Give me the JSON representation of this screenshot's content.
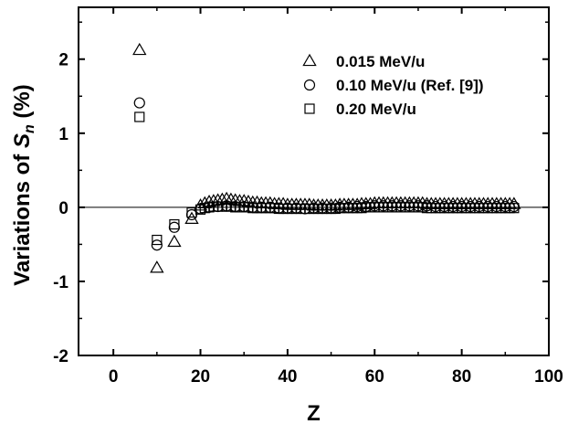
{
  "chart_data": {
    "type": "scatter",
    "title": "",
    "xlabel": "Z",
    "ylabel": {
      "prefix": "Variations of ",
      "symbol": "S",
      "subscript": "n",
      "suffix": " (%)"
    },
    "xlim": [
      -8,
      100
    ],
    "ylim": [
      -2,
      2.7
    ],
    "xticks": [
      0,
      20,
      40,
      60,
      80,
      100
    ],
    "yticks": [
      -2,
      -1,
      0,
      1,
      2
    ],
    "xtick_labels": [
      "0",
      "20",
      "40",
      "60",
      "80",
      "100"
    ],
    "ytick_labels": [
      "-2",
      "-1",
      "0",
      "1",
      "2"
    ],
    "grid": false,
    "zero_line": true,
    "legend_position": "top-right",
    "colors": {
      "marker": "#000000",
      "axis": "#000000",
      "zero_line": "#000000"
    },
    "series": [
      {
        "name": "0.015 MeV/u",
        "marker": "triangle",
        "x": [
          6,
          10,
          14,
          18,
          20,
          21,
          22,
          23,
          24,
          25,
          26,
          27,
          28,
          29,
          30,
          31,
          32,
          33,
          34,
          35,
          36,
          37,
          38,
          39,
          40,
          41,
          42,
          43,
          44,
          45,
          46,
          47,
          48,
          49,
          50,
          51,
          52,
          53,
          54,
          55,
          56,
          57,
          58,
          59,
          60,
          61,
          62,
          63,
          64,
          65,
          66,
          67,
          68,
          69,
          70,
          71,
          72,
          73,
          74,
          75,
          76,
          77,
          78,
          79,
          80,
          81,
          82,
          83,
          84,
          85,
          86,
          87,
          88,
          89,
          90,
          91,
          92
        ],
        "y": [
          2.12,
          -0.82,
          -0.47,
          -0.16,
          0.02,
          0.05,
          0.07,
          0.08,
          0.09,
          0.1,
          0.11,
          0.1,
          0.09,
          0.08,
          0.08,
          0.07,
          0.06,
          0.06,
          0.05,
          0.05,
          0.05,
          0.04,
          0.04,
          0.04,
          0.03,
          0.03,
          0.03,
          0.03,
          0.03,
          0.03,
          0.02,
          0.02,
          0.02,
          0.02,
          0.02,
          0.02,
          0.03,
          0.03,
          0.03,
          0.03,
          0.03,
          0.04,
          0.04,
          0.04,
          0.05,
          0.05,
          0.05,
          0.05,
          0.05,
          0.05,
          0.05,
          0.05,
          0.05,
          0.05,
          0.05,
          0.05,
          0.04,
          0.04,
          0.04,
          0.04,
          0.04,
          0.04,
          0.04,
          0.04,
          0.04,
          0.04,
          0.04,
          0.04,
          0.04,
          0.04,
          0.04,
          0.04,
          0.04,
          0.04,
          0.04,
          0.04,
          0.04
        ]
      },
      {
        "name": "0.10  MeV/u (Ref. [9])",
        "marker": "circle",
        "x": [
          6,
          10,
          14,
          18,
          20,
          22,
          24,
          26,
          28,
          30,
          32,
          34,
          36,
          38,
          40,
          42,
          44,
          46,
          48,
          50,
          52,
          54,
          56,
          58,
          60,
          62,
          64,
          66,
          68,
          70,
          72,
          74,
          76,
          78,
          80,
          82,
          84,
          86,
          88,
          90,
          92
        ],
        "y": [
          1.41,
          -0.51,
          -0.27,
          -0.1,
          -0.02,
          0.0,
          0.01,
          0.02,
          0.01,
          0.01,
          0.0,
          0.0,
          0.0,
          -0.01,
          -0.01,
          -0.01,
          -0.02,
          -0.01,
          -0.01,
          -0.01,
          0.0,
          0.0,
          0.01,
          0.01,
          0.02,
          0.02,
          0.02,
          0.02,
          0.02,
          0.02,
          0.02,
          0.01,
          0.01,
          0.01,
          0.01,
          0.01,
          0.01,
          0.01,
          0.01,
          0.01,
          0.01
        ]
      },
      {
        "name": "0.20  MeV/u",
        "marker": "square",
        "x": [
          6,
          10,
          14,
          18,
          20,
          21,
          22,
          23,
          24,
          25,
          26,
          27,
          28,
          29,
          30,
          31,
          32,
          33,
          34,
          35,
          36,
          37,
          38,
          39,
          40,
          41,
          42,
          43,
          44,
          45,
          46,
          47,
          48,
          49,
          50,
          51,
          52,
          53,
          54,
          55,
          56,
          57,
          58,
          59,
          60,
          61,
          62,
          63,
          64,
          65,
          66,
          67,
          68,
          69,
          70,
          71,
          72,
          73,
          74,
          75,
          76,
          77,
          78,
          79,
          80,
          81,
          82,
          83,
          84,
          85,
          86,
          87,
          88,
          89,
          90,
          91,
          92
        ],
        "y": [
          1.22,
          -0.44,
          -0.23,
          -0.07,
          -0.03,
          -0.01,
          0.0,
          0.01,
          0.01,
          0.01,
          0.01,
          0.01,
          0.0,
          0.0,
          0.0,
          0.0,
          -0.01,
          -0.01,
          -0.01,
          -0.01,
          -0.01,
          -0.01,
          -0.02,
          -0.02,
          -0.02,
          -0.02,
          -0.02,
          -0.02,
          -0.02,
          -0.02,
          -0.02,
          -0.02,
          -0.02,
          -0.02,
          -0.02,
          -0.02,
          -0.01,
          -0.01,
          -0.01,
          -0.01,
          -0.01,
          -0.01,
          0.0,
          0.0,
          0.0,
          0.0,
          0.0,
          0.0,
          0.0,
          0.0,
          0.0,
          0.0,
          0.0,
          0.0,
          0.0,
          0.0,
          -0.01,
          -0.01,
          -0.01,
          -0.01,
          -0.01,
          -0.01,
          -0.01,
          -0.01,
          -0.01,
          -0.01,
          -0.01,
          -0.01,
          -0.01,
          -0.01,
          -0.01,
          -0.01,
          -0.01,
          -0.01,
          -0.01,
          -0.01,
          -0.01
        ]
      }
    ]
  }
}
